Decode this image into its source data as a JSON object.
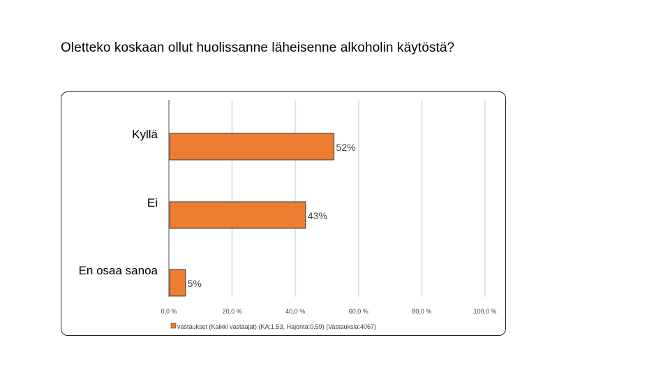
{
  "title": "Oletteko koskaan ollut huolissanne läheisenne alkoholin käytöstä?",
  "chart_data": {
    "type": "bar",
    "orientation": "horizontal",
    "categories": [
      "Kyllä",
      "Ei",
      "En osaa sanoa"
    ],
    "series": [
      {
        "name": "vastaukset (Kaikki vastaajat) (KA:1.53, Hajonta:0.59) (Vastauksia:4067)",
        "values": [
          52,
          43,
          5
        ],
        "labels": [
          "52%",
          "43%",
          "5%"
        ]
      }
    ],
    "xlim": [
      0,
      100
    ],
    "xticks": [
      0,
      20,
      40,
      60,
      80,
      100
    ],
    "xtick_labels": [
      "0,0 %",
      "20,0 %",
      "40,0 %",
      "60,0 %",
      "80,0 %",
      "100,0 %"
    ],
    "grid": true,
    "legend_position": "bottom",
    "colors": {
      "bar": "#ED7D31",
      "bar_edge": "#3a3a3a",
      "grid": "#dce6f0",
      "axis": "#a6a6a6"
    }
  }
}
